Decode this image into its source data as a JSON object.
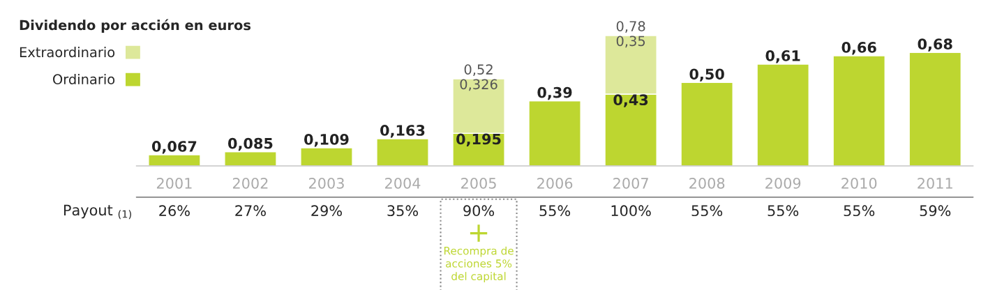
{
  "chart_data": {
    "type": "bar",
    "stacked": true,
    "legend": "top left",
    "legend_title": "Dividendo por acción en euros",
    "categories": [
      "2001",
      "2002",
      "2003",
      "2004",
      "2005",
      "2006",
      "2007",
      "2008",
      "2009",
      "2010",
      "2011"
    ],
    "series": [
      {
        "name": "Ordinario",
        "color": "#bdd630",
        "values": [
          0.067,
          0.085,
          0.109,
          0.163,
          0.195,
          0.39,
          0.43,
          0.5,
          0.61,
          0.66,
          0.68
        ],
        "value_labels": [
          "0,067",
          "0,085",
          "0,109",
          "0,163",
          "0,195",
          "0,39",
          "0,43",
          "0,50",
          "0,61",
          "0,66",
          "0,68"
        ]
      },
      {
        "name": "Extraordinario",
        "color": "#dde89a",
        "values": [
          null,
          null,
          null,
          null,
          0.326,
          null,
          0.35,
          null,
          null,
          null,
          null
        ],
        "value_labels": [
          null,
          null,
          null,
          null,
          "0,326",
          null,
          "0,35",
          null,
          null,
          null,
          null
        ]
      }
    ],
    "totals": [
      null,
      null,
      null,
      null,
      "0,52",
      null,
      "0,78",
      null,
      null,
      null,
      null
    ],
    "annotations": [
      "Payout $_{(1)}$",
      "26%",
      "27%",
      "29%",
      "35%",
      "90%",
      "55%",
      "100%",
      "55%",
      "55%",
      "55%",
      "59%",
      "+",
      "Recompra de\nacciones 5%\ndel capital"
    ]
  }
}
